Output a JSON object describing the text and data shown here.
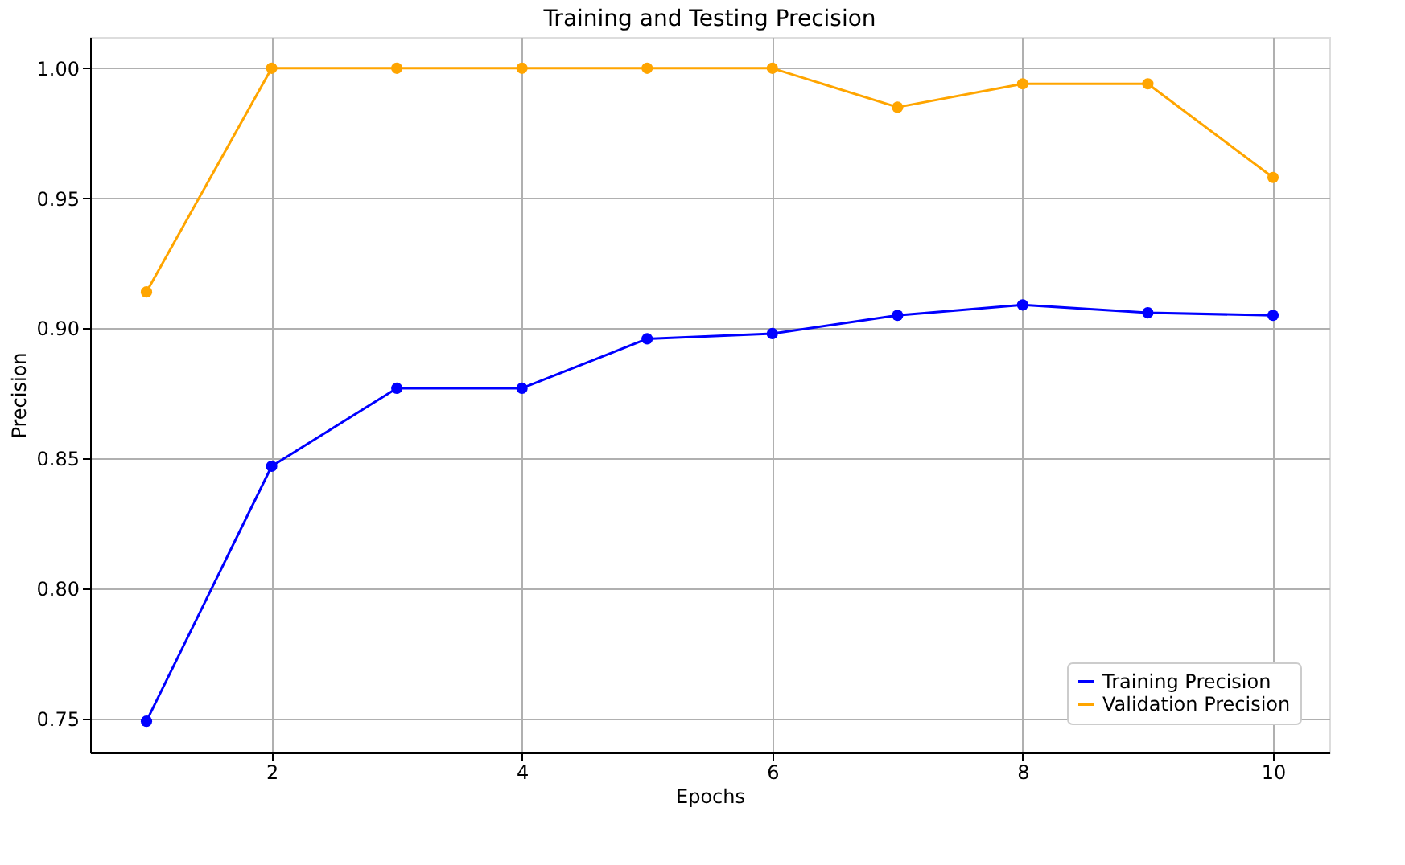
{
  "chart_data": {
    "type": "line",
    "title": "Training and Testing Precision",
    "xlabel": "Epochs",
    "ylabel": "Precision",
    "x": [
      1,
      2,
      3,
      4,
      5,
      6,
      7,
      8,
      9,
      10
    ],
    "series": [
      {
        "name": "Training Precision",
        "color": "#0000ff",
        "values": [
          0.749,
          0.847,
          0.877,
          0.877,
          0.896,
          0.898,
          0.905,
          0.909,
          0.906,
          0.905
        ]
      },
      {
        "name": "Validation Precision",
        "color": "#ffa500",
        "values": [
          0.914,
          1.0,
          1.0,
          1.0,
          1.0,
          1.0,
          0.985,
          0.994,
          0.994,
          0.958
        ]
      }
    ],
    "xlim": [
      0.55,
      10.45
    ],
    "xticks": [
      2,
      4,
      6,
      8,
      10
    ],
    "ylim": [
      0.737,
      1.012
    ],
    "yticks": [
      {
        "value": 0.75,
        "label": "0.75"
      },
      {
        "value": 0.8,
        "label": "0.80"
      },
      {
        "value": 0.85,
        "label": "0.85"
      },
      {
        "value": 0.9,
        "label": "0.90"
      },
      {
        "value": 0.95,
        "label": "0.95"
      },
      {
        "value": 1.0,
        "label": "1.00"
      }
    ],
    "grid": true,
    "legend": "bottom right",
    "marker": "circle",
    "line_style": "solid"
  }
}
